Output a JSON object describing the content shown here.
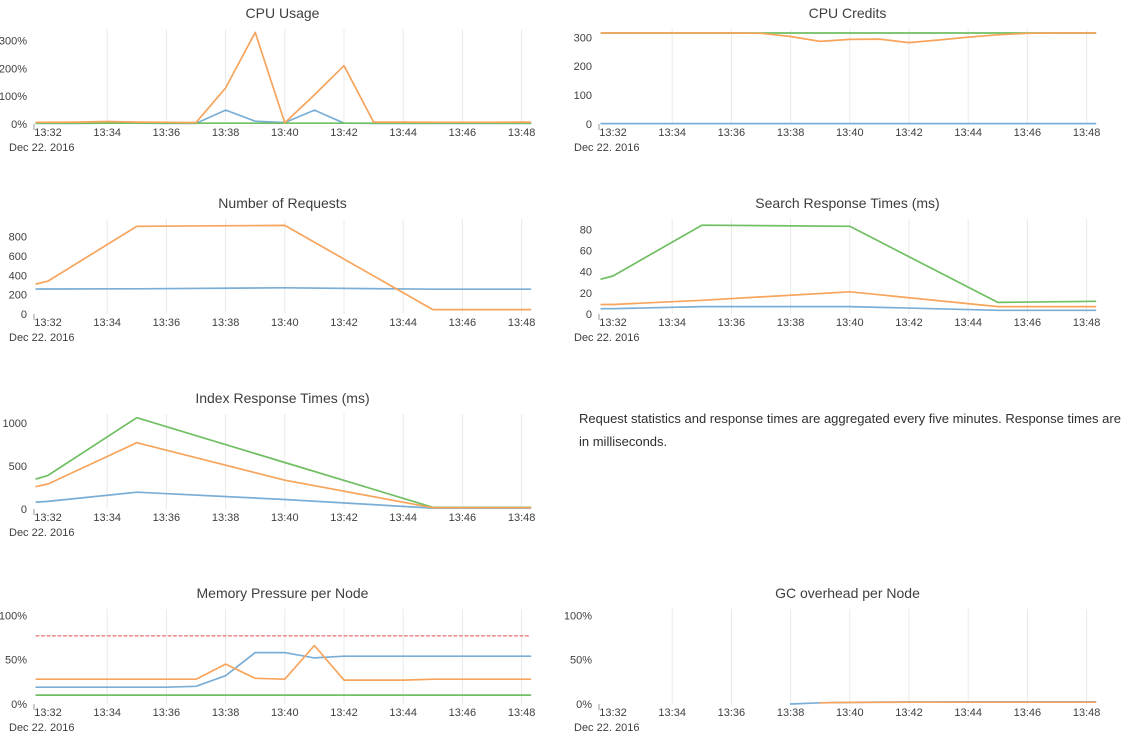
{
  "note": {
    "text": "Request statistics and response times are aggregated every five minutes. Response times are in milliseconds."
  },
  "x_axis": {
    "tick_minutes": [
      0,
      2,
      4,
      6,
      8,
      10,
      12,
      14,
      16
    ],
    "tick_labels": [
      "13:32",
      "13:34",
      "13:36",
      "13:38",
      "13:40",
      "13:42",
      "13:44",
      "13:46",
      "13:48"
    ],
    "date_label": "Dec 22. 2016"
  },
  "palette": {
    "blue": "#7aaed6",
    "orange": "#f7a45c",
    "green": "#70bf63",
    "red": "#ee8d8d",
    "grid": "#e9e9e9",
    "tick_text": "#3f3f3f",
    "title_text": "#3e3e3e"
  },
  "chart_data": [
    {
      "type": "line",
      "title": "CPU Usage",
      "col": 0,
      "row": 0,
      "xlabel": "",
      "ylabel": "",
      "ylim": [
        0,
        335
      ],
      "legend": "none",
      "grid": "vertical",
      "yticks": [
        {
          "v": 0,
          "label": "0%"
        },
        {
          "v": 100,
          "label": "100%"
        },
        {
          "v": 200,
          "label": "200%"
        },
        {
          "v": 300,
          "label": "300%"
        }
      ],
      "series": [
        {
          "name": "blue",
          "color": "blue",
          "dash": "",
          "points": [
            [
              -0.4,
              2
            ],
            [
              0,
              2
            ],
            [
              1,
              2
            ],
            [
              2,
              3
            ],
            [
              3,
              3
            ],
            [
              4,
              2
            ],
            [
              5,
              2
            ],
            [
              6,
              50
            ],
            [
              7,
              10
            ],
            [
              8,
              5
            ],
            [
              9,
              50
            ],
            [
              10,
              3
            ],
            [
              11,
              2
            ],
            [
              12,
              2
            ],
            [
              13,
              2
            ],
            [
              14,
              2
            ],
            [
              15,
              2
            ],
            [
              16,
              2
            ],
            [
              16.3,
              2
            ]
          ]
        },
        {
          "name": "green",
          "color": "green",
          "dash": "",
          "points": [
            [
              -0.4,
              3
            ],
            [
              16.3,
              3
            ]
          ]
        },
        {
          "name": "orange",
          "color": "orange",
          "dash": "",
          "points": [
            [
              -0.4,
              6
            ],
            [
              0,
              6
            ],
            [
              1,
              7
            ],
            [
              2,
              9
            ],
            [
              3,
              7
            ],
            [
              4,
              6
            ],
            [
              5,
              5
            ],
            [
              6,
              130
            ],
            [
              7,
              330
            ],
            [
              8,
              4
            ],
            [
              9,
              105
            ],
            [
              10,
              210
            ],
            [
              11,
              7
            ],
            [
              12,
              7
            ],
            [
              13,
              6
            ],
            [
              14,
              6
            ],
            [
              15,
              6
            ],
            [
              16,
              7
            ],
            [
              16.3,
              7
            ]
          ]
        }
      ]
    },
    {
      "type": "line",
      "title": "CPU Credits",
      "col": 1,
      "row": 0,
      "xlabel": "",
      "ylabel": "",
      "ylim": [
        0,
        322
      ],
      "legend": "none",
      "grid": "vertical",
      "yticks": [
        {
          "v": 0,
          "label": "0"
        },
        {
          "v": 100,
          "label": "100"
        },
        {
          "v": 200,
          "label": "200"
        },
        {
          "v": 300,
          "label": "300"
        }
      ],
      "series": [
        {
          "name": "blue",
          "color": "blue",
          "dash": "",
          "points": [
            [
              -0.4,
              1.5
            ],
            [
              16.3,
              1.5
            ]
          ]
        },
        {
          "name": "green",
          "color": "green",
          "dash": "",
          "points": [
            [
              -0.4,
              315
            ],
            [
              16.3,
              315
            ]
          ]
        },
        {
          "name": "orange",
          "color": "orange",
          "dash": "",
          "points": [
            [
              -0.4,
              315
            ],
            [
              0,
              315
            ],
            [
              2,
              315
            ],
            [
              4,
              315
            ],
            [
              5,
              314
            ],
            [
              6,
              303
            ],
            [
              7,
              286
            ],
            [
              8,
              293
            ],
            [
              9,
              294
            ],
            [
              10,
              282
            ],
            [
              11,
              291
            ],
            [
              12,
              301
            ],
            [
              13,
              309
            ],
            [
              14,
              314
            ],
            [
              15,
              315
            ],
            [
              16,
              315
            ],
            [
              16.3,
              315
            ]
          ]
        }
      ]
    },
    {
      "type": "line",
      "title": "Number of Requests",
      "col": 0,
      "row": 1,
      "xlabel": "",
      "ylabel": "",
      "ylim": [
        0,
        960
      ],
      "legend": "none",
      "grid": "vertical",
      "yticks": [
        {
          "v": 0,
          "label": "0"
        },
        {
          "v": 200,
          "label": "200"
        },
        {
          "v": 400,
          "label": "400"
        },
        {
          "v": 600,
          "label": "600"
        },
        {
          "v": 800,
          "label": "800"
        }
      ],
      "series": [
        {
          "name": "blue",
          "color": "blue",
          "dash": "",
          "points": [
            [
              -0.4,
              258
            ],
            [
              0,
              258
            ],
            [
              3,
              260
            ],
            [
              8,
              270
            ],
            [
              13,
              256
            ],
            [
              16.3,
              256
            ]
          ]
        },
        {
          "name": "orange",
          "color": "orange",
          "dash": "",
          "points": [
            [
              -0.4,
              310
            ],
            [
              0,
              340
            ],
            [
              3,
              905
            ],
            [
              8,
              915
            ],
            [
              13,
              45
            ],
            [
              16.3,
              45
            ]
          ]
        }
      ]
    },
    {
      "type": "line",
      "title": "Search Response Times (ms)",
      "col": 1,
      "row": 1,
      "xlabel": "",
      "ylabel": "",
      "ylim": [
        0,
        88
      ],
      "legend": "none",
      "grid": "vertical",
      "yticks": [
        {
          "v": 0,
          "label": "0"
        },
        {
          "v": 20,
          "label": "20"
        },
        {
          "v": 40,
          "label": "40"
        },
        {
          "v": 60,
          "label": "60"
        },
        {
          "v": 80,
          "label": "80"
        }
      ],
      "series": [
        {
          "name": "blue",
          "color": "blue",
          "dash": "",
          "points": [
            [
              -0.4,
              5
            ],
            [
              0,
              5
            ],
            [
              3,
              7
            ],
            [
              8,
              7
            ],
            [
              13,
              3.5
            ],
            [
              16.3,
              3.5
            ]
          ]
        },
        {
          "name": "green",
          "color": "green",
          "dash": "",
          "points": [
            [
              -0.4,
              33
            ],
            [
              0,
              36
            ],
            [
              3,
              84
            ],
            [
              8,
              83
            ],
            [
              13,
              11
            ],
            [
              16.3,
              12
            ]
          ]
        },
        {
          "name": "orange",
          "color": "orange",
          "dash": "",
          "points": [
            [
              -0.4,
              9
            ],
            [
              0,
              9
            ],
            [
              3,
              13
            ],
            [
              8,
              21
            ],
            [
              13,
              7
            ],
            [
              16.3,
              7
            ]
          ]
        }
      ]
    },
    {
      "type": "line",
      "title": "Index Response Times (ms)",
      "col": 0,
      "row": 2,
      "xlabel": "",
      "ylabel": "",
      "ylim": [
        0,
        1080
      ],
      "legend": "none",
      "grid": "vertical",
      "yticks": [
        {
          "v": 0,
          "label": "0"
        },
        {
          "v": 500,
          "label": "500"
        },
        {
          "v": 1000,
          "label": "1000"
        }
      ],
      "series": [
        {
          "name": "blue",
          "color": "blue",
          "dash": "",
          "points": [
            [
              -0.4,
              80
            ],
            [
              0,
              88
            ],
            [
              3,
              195
            ],
            [
              8,
              110
            ],
            [
              13,
              10
            ],
            [
              16.3,
              10
            ]
          ]
        },
        {
          "name": "green",
          "color": "green",
          "dash": "",
          "points": [
            [
              -0.4,
              350
            ],
            [
              0,
              390
            ],
            [
              3,
              1060
            ],
            [
              8,
              540
            ],
            [
              13,
              20
            ],
            [
              16.3,
              20
            ]
          ]
        },
        {
          "name": "orange",
          "color": "orange",
          "dash": "",
          "points": [
            [
              -0.4,
              260
            ],
            [
              0,
              290
            ],
            [
              3,
              770
            ],
            [
              8,
              335
            ],
            [
              13,
              15
            ],
            [
              16.3,
              15
            ]
          ]
        }
      ]
    },
    {
      "type": "line",
      "title": "Memory Pressure per Node",
      "col": 0,
      "row": 3,
      "xlabel": "",
      "ylabel": "",
      "ylim": [
        0,
        105
      ],
      "legend": "none",
      "grid": "vertical",
      "yticks": [
        {
          "v": 0,
          "label": "0%"
        },
        {
          "v": 50,
          "label": "50%"
        },
        {
          "v": 100,
          "label": "100%"
        }
      ],
      "series": [
        {
          "name": "blue",
          "color": "blue",
          "dash": "",
          "points": [
            [
              -0.4,
              19
            ],
            [
              0,
              19
            ],
            [
              2,
              19
            ],
            [
              4,
              19
            ],
            [
              5,
              20
            ],
            [
              6,
              32
            ],
            [
              7,
              58
            ],
            [
              8,
              58
            ],
            [
              9,
              52
            ],
            [
              10,
              54
            ],
            [
              12,
              54
            ],
            [
              14,
              54
            ],
            [
              16,
              54
            ],
            [
              16.3,
              54
            ]
          ]
        },
        {
          "name": "green",
          "color": "green",
          "dash": "",
          "points": [
            [
              -0.4,
              10
            ],
            [
              16.3,
              10
            ]
          ]
        },
        {
          "name": "orange",
          "color": "orange",
          "dash": "",
          "points": [
            [
              -0.4,
              28
            ],
            [
              0,
              28
            ],
            [
              2,
              28
            ],
            [
              4,
              28
            ],
            [
              5,
              28
            ],
            [
              6,
              45
            ],
            [
              7,
              29
            ],
            [
              8,
              28
            ],
            [
              9,
              66
            ],
            [
              10,
              27
            ],
            [
              11,
              27
            ],
            [
              12,
              27
            ],
            [
              13,
              28
            ],
            [
              14,
              28
            ],
            [
              16,
              28
            ],
            [
              16.3,
              28
            ]
          ]
        },
        {
          "name": "red-threshold",
          "color": "red",
          "dash": "2.5,3",
          "points": [
            [
              -0.4,
              77
            ],
            [
              16.3,
              77
            ]
          ]
        }
      ]
    },
    {
      "type": "line",
      "title": "GC overhead per Node",
      "col": 1,
      "row": 3,
      "xlabel": "",
      "ylabel": "",
      "ylim": [
        0,
        105
      ],
      "legend": "none",
      "grid": "vertical",
      "yticks": [
        {
          "v": 0,
          "label": "0%"
        },
        {
          "v": 50,
          "label": "50%"
        },
        {
          "v": 100,
          "label": "100%"
        }
      ],
      "series": [
        {
          "name": "blue",
          "color": "blue",
          "dash": "",
          "points": [
            [
              6,
              0
            ],
            [
              7,
              1.3
            ],
            [
              8,
              1.8
            ],
            [
              9,
              2.1
            ],
            [
              10,
              2.3
            ],
            [
              12,
              2.4
            ],
            [
              14,
              2.5
            ],
            [
              16,
              2.5
            ],
            [
              16.3,
              2.5
            ]
          ]
        },
        {
          "name": "orange",
          "color": "orange",
          "dash": "",
          "points": [
            [
              7,
              1.4
            ],
            [
              8,
              1.8
            ],
            [
              9,
              1.9
            ],
            [
              10,
              2
            ],
            [
              12,
              2
            ],
            [
              14,
              2
            ],
            [
              16,
              2
            ],
            [
              16.3,
              2
            ]
          ]
        }
      ]
    }
  ]
}
